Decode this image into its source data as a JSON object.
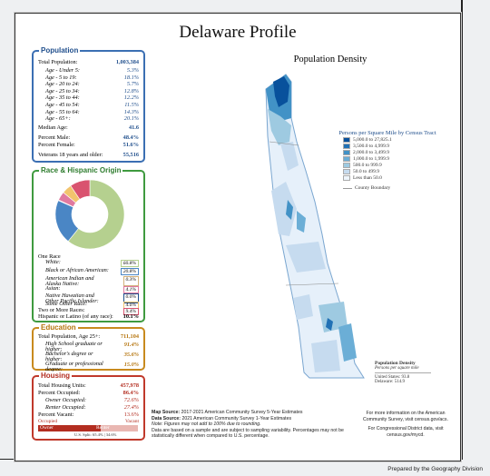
{
  "title": "Delaware Profile",
  "population": {
    "heading": "Population",
    "total_label": "Total Population:",
    "total_value": "1,003,384",
    "ages": [
      {
        "label": "Age - Under 5:",
        "value": "5.3%"
      },
      {
        "label": "Age - 5 to 19:",
        "value": "18.1%"
      },
      {
        "label": "Age - 20 to 24:",
        "value": "5.7%"
      },
      {
        "label": "Age - 25 to 34:",
        "value": "12.8%"
      },
      {
        "label": "Age - 35 to 44:",
        "value": "12.2%"
      },
      {
        "label": "Age - 45 to 54:",
        "value": "11.5%"
      },
      {
        "label": "Age - 55 to 64:",
        "value": "14.3%"
      },
      {
        "label": "Age - 65+:",
        "value": "20.1%"
      }
    ],
    "median_label": "Median Age:",
    "median_value": "41.6",
    "male_label": "Percent Male:",
    "male_value": "48.4%",
    "female_label": "Percent Female:",
    "female_value": "51.6%",
    "vet_label": "Veterans 18 years and older:",
    "vet_value": "55,516"
  },
  "race": {
    "heading": "Race & Hispanic Origin",
    "one_race": "One Race",
    "items": [
      {
        "label": "White:",
        "value": "60.8%",
        "color": "#b5d08f"
      },
      {
        "label": "Black or African American:",
        "value": "20.8%",
        "color": "#4a86c5"
      },
      {
        "label": "American Indian and Alaska Native:",
        "value": "0.3%",
        "color": "#d2b07a"
      },
      {
        "label": "Asian:",
        "value": "4.1%",
        "color": "#e07aa0"
      },
      {
        "label": "Native Hawaiian and Other Pacific Islander:",
        "value": "0.0%",
        "color": "#1f4e8c"
      },
      {
        "label": "Some Other Race:",
        "value": "4.6%",
        "color": "#f2c46d"
      },
      {
        "label": "Two or More Races:",
        "value": "9.4%",
        "color": "#d9536f"
      }
    ],
    "hispanic_label": "Hispanic or Latino (of any race):",
    "hispanic_value": "10.1%"
  },
  "education": {
    "heading": "Education",
    "pop_label": "Total Population, Age 25+:",
    "pop_value": "711,104",
    "hs_label": "High School graduate or higher:",
    "hs_value": "91.4%",
    "ba_label": "Bachelor's degree or higher:",
    "ba_value": "35.6%",
    "grad_label": "Graduate or professional degree:",
    "grad_value": "15.0%"
  },
  "housing": {
    "heading": "Housing",
    "units_label": "Total Housing Units:",
    "units_value": "457,978",
    "occ_label": "Percent Occupied:",
    "occ_value": "86.4%",
    "owner_label": "Owner Occupied:",
    "owner_value": "72.6%",
    "renter_label": "Renter Occupied:",
    "renter_value": "27.4%",
    "vacant_label": "Percent Vacant:",
    "vacant_value": "13.6%",
    "bar_occupied": "Occupied",
    "bar_vacant": "Vacant",
    "bar_owner": "Owner",
    "bar_renter": "Renter",
    "owner_share": 0.726,
    "us_split": "U.S. Split: 65.4% | 34.6%"
  },
  "map": {
    "title": "Population Density",
    "legend_title": "Persons per Square Mile by Census Tract",
    "legend": [
      {
        "label": "5,000.0 to 27,825.1",
        "color": "#08519c"
      },
      {
        "label": "3,500.0 to 4,999.9",
        "color": "#2171b5"
      },
      {
        "label": "2,000.0 to 3,499.9",
        "color": "#4292c6"
      },
      {
        "label": "1,000.0 to 1,999.9",
        "color": "#6baed6"
      },
      {
        "label": "500.0 to 999.9",
        "color": "#9ecae1"
      },
      {
        "label": "50.0 to 499.9",
        "color": "#c6dbef"
      },
      {
        "label": "Less than 50.0",
        "color": "#eef5fc"
      }
    ],
    "county_label": "County Boundary",
    "inset_title": "Population Density",
    "inset_sub": "Persons per square mile",
    "inset_us": "United States: 93.8",
    "inset_de": "Delaware: 514.9"
  },
  "notes": {
    "map_source_label": "Map Source:",
    "map_source": "2017-2021 American Community Survey 5-Year Estimates",
    "data_source_label": "Data Source:",
    "data_source": "2021 American Community Survey 1-Year Estimates",
    "note1": "Note: Figures may not add to 100% due to rounding.",
    "note2": "Data are based on a sample and are subject to sampling variability. Percentages may not be statistically different when compared to U.S. percentage."
  },
  "info": {
    "line1": "For more information on the American Community Survey, visit census.gov/acs.",
    "line2": "For Congressional District data, visit census.gov/mycd."
  },
  "footer": "Prepared by the Geography Division"
}
